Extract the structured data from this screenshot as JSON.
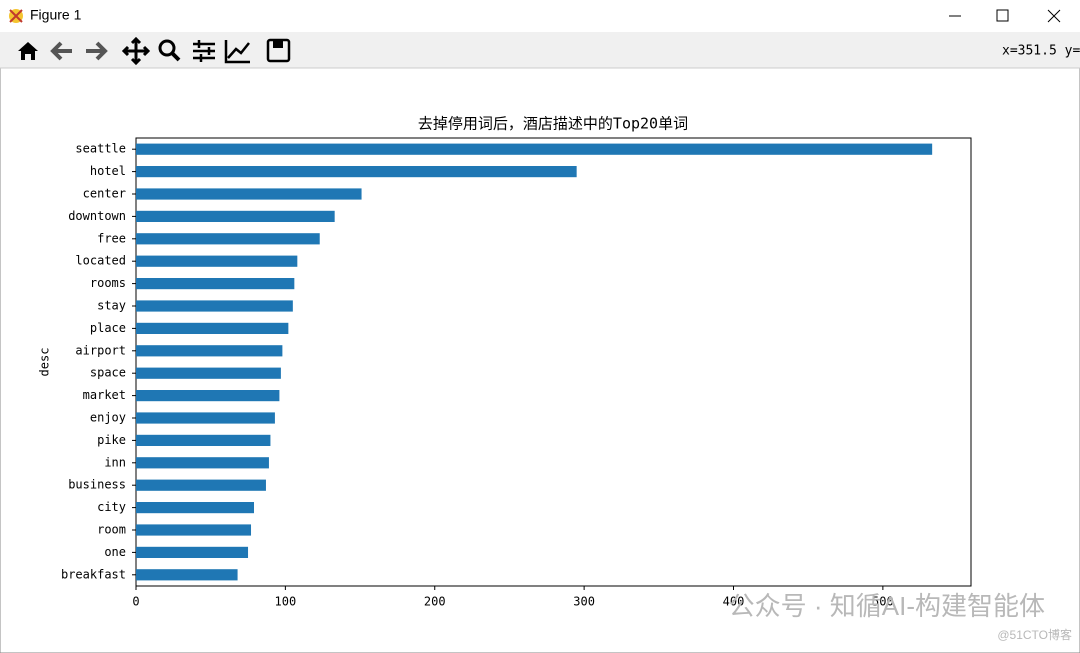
{
  "window": {
    "title": "Figure 1",
    "coords": "x=351.5 y="
  },
  "watermark": {
    "main": "公众号 · 知循AI-构建智能体",
    "corner": "@51CTO博客"
  },
  "chart_data": {
    "type": "barh",
    "title": "去掉停用词后，酒店描述中的Top20单词",
    "y_label": "desc",
    "categories": [
      "seattle",
      "hotel",
      "center",
      "downtown",
      "free",
      "located",
      "rooms",
      "stay",
      "place",
      "airport",
      "space",
      "market",
      "enjoy",
      "pike",
      "inn",
      "business",
      "city",
      "room",
      "one",
      "breakfast"
    ],
    "values": [
      533,
      295,
      151,
      133,
      123,
      108,
      106,
      105,
      102,
      98,
      97,
      96,
      93,
      90,
      89,
      87,
      79,
      77,
      75,
      68
    ],
    "color": "#1f77b4",
    "xlim": [
      0,
      559
    ],
    "xticks": [
      0,
      100,
      200,
      300,
      400,
      500
    ],
    "grid": false
  }
}
